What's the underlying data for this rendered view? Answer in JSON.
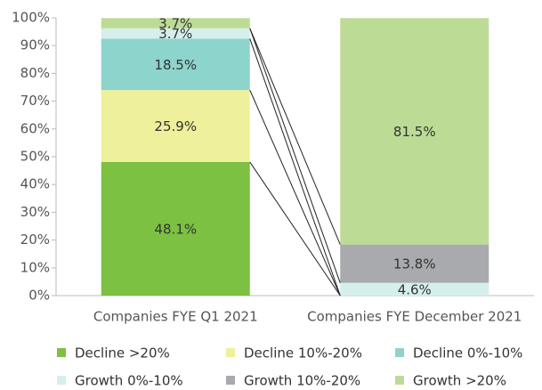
{
  "chart_data": {
    "type": "stacked_bar",
    "categories": [
      "Companies FYE Q1 2021",
      "Companies FYE December 2021"
    ],
    "series": [
      {
        "name": "Decline >20%",
        "color": "#7cc142",
        "values": [
          48.1,
          0
        ],
        "value_labels": [
          "48.1%",
          null
        ]
      },
      {
        "name": "Decline 10%-20%",
        "color": "#eef09b",
        "values": [
          25.9,
          0
        ],
        "value_labels": [
          "25.9%",
          null
        ]
      },
      {
        "name": "Decline 0%-10%",
        "color": "#8dd4cc",
        "values": [
          18.5,
          0
        ],
        "value_labels": [
          "18.5%",
          null
        ]
      },
      {
        "name": "Growth 0%-10%",
        "color": "#d5efec",
        "values": [
          3.7,
          4.6
        ],
        "value_labels": [
          "3.7%",
          "4.6%"
        ]
      },
      {
        "name": "Growth 10%-20%",
        "color": "#a8aaad",
        "values": [
          0,
          13.8
        ],
        "value_labels": [
          null,
          "13.8%"
        ]
      },
      {
        "name": "Growth >20%",
        "color": "#bcdc96",
        "values": [
          3.7,
          81.5
        ],
        "value_labels": [
          "3.7%",
          "81.5%"
        ]
      }
    ],
    "ylim": [
      0,
      100
    ],
    "yticks": [
      {
        "value": 0,
        "label": "0%"
      },
      {
        "value": 10,
        "label": "10%"
      },
      {
        "value": 20,
        "label": "20%"
      },
      {
        "value": 30,
        "label": "30%"
      },
      {
        "value": 40,
        "label": "40%"
      },
      {
        "value": 50,
        "label": "50%"
      },
      {
        "value": 60,
        "label": "60%"
      },
      {
        "value": 70,
        "label": "70%"
      },
      {
        "value": 80,
        "label": "80%"
      },
      {
        "value": 90,
        "label": "90%"
      },
      {
        "value": 100,
        "label": "100%"
      }
    ],
    "legend": "bottom"
  }
}
